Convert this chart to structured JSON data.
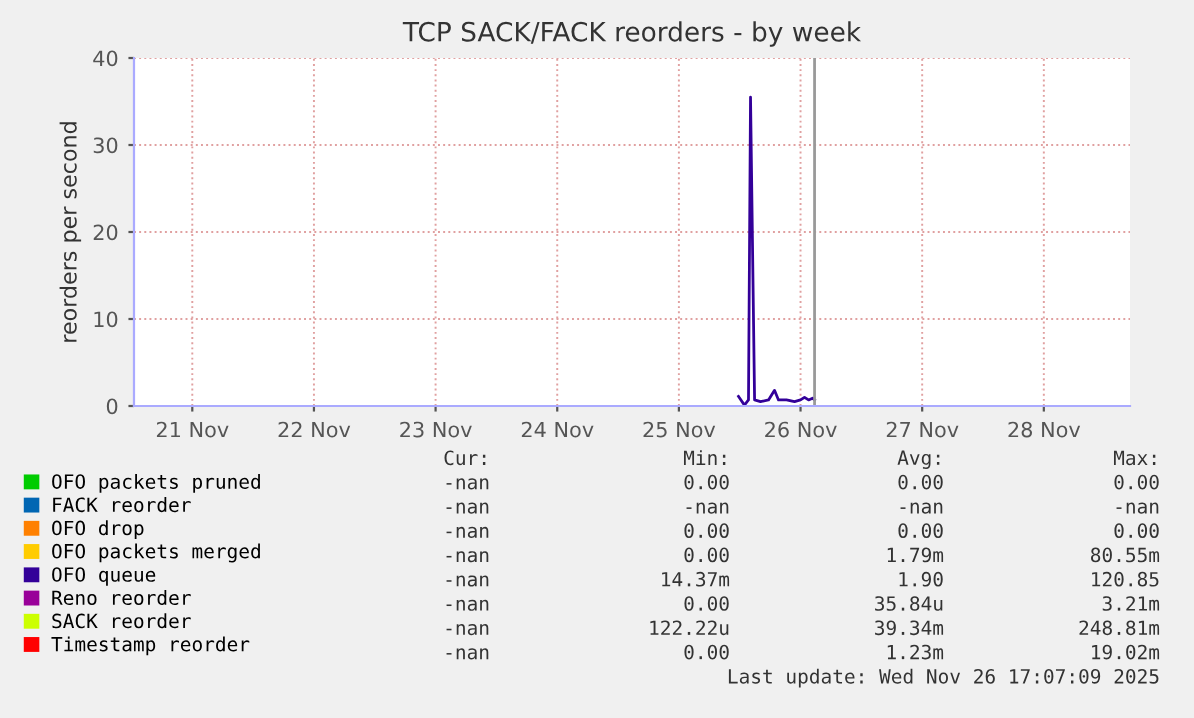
{
  "chart_data": {
    "type": "line",
    "title": "TCP SACK/FACK reorders - by week",
    "ylabel": "reorders per second",
    "x": [
      "2025-11-25T23:46",
      "2025-11-26T00:56",
      "2025-11-26T01:44",
      "2025-11-26T02:08",
      "2025-11-26T02:56",
      "2025-11-26T04:06",
      "2025-11-26T05:41",
      "2025-11-26T06:52",
      "2025-11-26T07:39",
      "2025-11-26T09:14",
      "2025-11-26T10:49",
      "2025-11-26T12:00",
      "2025-11-26T12:47",
      "2025-11-26T13:35",
      "2025-11-26T14:22",
      "2025-11-26T14:46"
    ],
    "series": [
      {
        "name": "OFO packets pruned",
        "color": "#00cc00",
        "values": [
          null,
          null,
          null,
          null,
          null,
          null,
          null,
          null,
          null,
          null,
          null,
          null,
          null,
          null,
          null,
          null
        ]
      },
      {
        "name": "FACK reorder",
        "color": "#0066b3",
        "values": [
          null,
          null,
          null,
          null,
          null,
          null,
          null,
          null,
          null,
          null,
          null,
          null,
          null,
          null,
          null,
          null
        ]
      },
      {
        "name": "OFO drop",
        "color": "#ff8000",
        "values": [
          null,
          null,
          null,
          null,
          null,
          null,
          null,
          null,
          null,
          null,
          null,
          null,
          null,
          null,
          null,
          null
        ]
      },
      {
        "name": "OFO packets merged",
        "color": "#ffcc00",
        "values": [
          null,
          null,
          null,
          null,
          null,
          null,
          null,
          null,
          null,
          null,
          null,
          null,
          null,
          null,
          null,
          null
        ]
      },
      {
        "name": "OFO queue",
        "color": "#330099",
        "values": [
          1.1,
          0.1,
          0.7,
          35.5,
          0.7,
          0.5,
          0.7,
          1.8,
          0.7,
          0.7,
          0.5,
          0.7,
          1.0,
          0.7,
          0.9,
          0.7
        ]
      },
      {
        "name": "Reno reorder",
        "color": "#990099",
        "values": [
          null,
          null,
          null,
          null,
          null,
          null,
          null,
          null,
          null,
          null,
          null,
          null,
          null,
          null,
          null,
          null
        ]
      },
      {
        "name": "SACK reorder",
        "color": "#ccff00",
        "values": [
          null,
          null,
          null,
          null,
          null,
          null,
          null,
          null,
          null,
          null,
          null,
          null,
          null,
          null,
          null,
          null
        ]
      },
      {
        "name": "Timestamp reorder",
        "color": "#ff0000",
        "values": [
          null,
          null,
          null,
          null,
          null,
          null,
          null,
          null,
          null,
          null,
          null,
          null,
          null,
          null,
          null,
          null
        ]
      }
    ],
    "xlim": [
      "2025-11-21T00:30",
      "2025-11-29T05:00"
    ],
    "xticks": [
      {
        "value": "2025-11-21T12:00",
        "label": "21 Nov"
      },
      {
        "value": "2025-11-22T12:00",
        "label": "22 Nov"
      },
      {
        "value": "2025-11-23T12:00",
        "label": "23 Nov"
      },
      {
        "value": "2025-11-24T12:00",
        "label": "24 Nov"
      },
      {
        "value": "2025-11-25T12:00",
        "label": "25 Nov"
      },
      {
        "value": "2025-11-26T12:00",
        "label": "26 Nov"
      },
      {
        "value": "2025-11-27T12:00",
        "label": "27 Nov"
      },
      {
        "value": "2025-11-28T12:00",
        "label": "28 Nov"
      }
    ],
    "ylim": [
      0,
      40
    ],
    "yticks": [
      0,
      10,
      20,
      30,
      40
    ],
    "ref_lines": [
      {
        "axis": "x",
        "value": "2025-11-26T14:46",
        "label": null,
        "color": "#999999"
      }
    ],
    "grid": true,
    "legend": "bottom left",
    "annotations": [
      "Cur:",
      "Min:",
      "Avg:",
      "Max:",
      "-nan",
      "0.00",
      "0.00",
      "0.00",
      "-nan",
      "-nan",
      "-nan",
      "-nan",
      "-nan",
      "0.00",
      "0.00",
      "0.00",
      "-nan",
      "0.00",
      "1.79m",
      "80.55m",
      "-nan",
      "14.37m",
      "1.90",
      "120.85",
      "-nan",
      "0.00",
      "35.84u",
      "3.21m",
      "-nan",
      "122.22u",
      "39.34m",
      "248.81m",
      "-nan",
      "0.00",
      "1.23m",
      "19.02m",
      "Last update: Wed Nov 26 17:07:09 2025"
    ]
  }
}
